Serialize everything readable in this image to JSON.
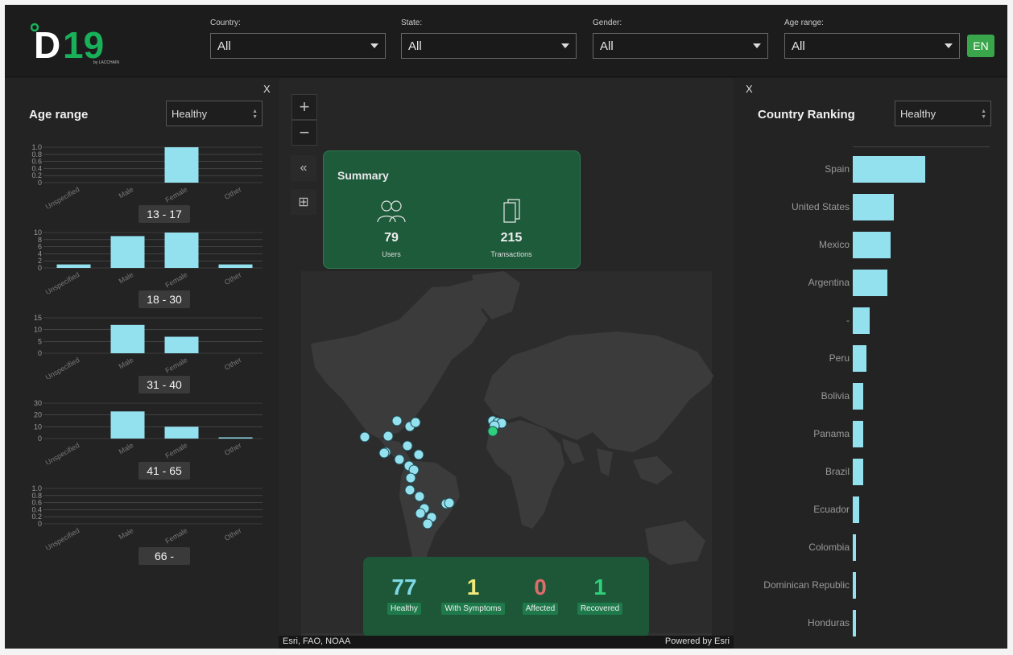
{
  "header": {
    "logo_text": "D19",
    "logo_subtext": "by LACCHAIN",
    "filters": [
      {
        "label": "Country:",
        "value": "All"
      },
      {
        "label": "State:",
        "value": "All"
      },
      {
        "label": "Gender:",
        "value": "All"
      },
      {
        "label": "Age range:",
        "value": "All"
      }
    ],
    "language_button": "EN"
  },
  "left_panel": {
    "close": "X",
    "title": "Age range",
    "selector_value": "Healthy",
    "categories": [
      "Unspecified",
      "Male",
      "Female",
      "Other"
    ],
    "range_labels": [
      "13 - 17",
      "18 - 30",
      "31 - 40",
      "41 - 65",
      "66 -"
    ]
  },
  "chart_data": [
    {
      "type": "bar",
      "title": "13 - 17",
      "categories": [
        "Unspecified",
        "Male",
        "Female",
        "Other"
      ],
      "values": [
        0,
        0,
        1,
        0
      ],
      "ylim": [
        0,
        1.0
      ],
      "yticks": [
        "0",
        "0.2",
        "0.4",
        "0.6",
        "0.8",
        "1.0"
      ],
      "bar_color": "#93e1ef"
    },
    {
      "type": "bar",
      "title": "18 - 30",
      "categories": [
        "Unspecified",
        "Male",
        "Female",
        "Other"
      ],
      "values": [
        1,
        9,
        10,
        1
      ],
      "ylim": [
        0,
        10
      ],
      "yticks": [
        "0",
        "2",
        "4",
        "6",
        "8",
        "10"
      ],
      "bar_color": "#93e1ef"
    },
    {
      "type": "bar",
      "title": "31 - 40",
      "categories": [
        "Unspecified",
        "Male",
        "Female",
        "Other"
      ],
      "values": [
        0,
        12,
        7,
        0
      ],
      "ylim": [
        0,
        15
      ],
      "yticks": [
        "0",
        "5",
        "10",
        "15"
      ],
      "bar_color": "#93e1ef"
    },
    {
      "type": "bar",
      "title": "41 - 65",
      "categories": [
        "Unspecified",
        "Male",
        "Female",
        "Other"
      ],
      "values": [
        0,
        23,
        10,
        1
      ],
      "ylim": [
        0,
        30
      ],
      "yticks": [
        "0",
        "10",
        "20",
        "30"
      ],
      "bar_color": "#93e1ef"
    },
    {
      "type": "bar",
      "title": "66 -",
      "categories": [
        "Unspecified",
        "Male",
        "Female",
        "Other"
      ],
      "values": [
        0,
        0,
        0,
        0
      ],
      "ylim": [
        0,
        1.0
      ],
      "yticks": [
        "0",
        "0.2",
        "0.4",
        "0.6",
        "0.8",
        "1.0"
      ],
      "bar_color": "#93e1ef"
    },
    {
      "type": "bar",
      "title": "Country Ranking",
      "categories": [
        "Spain",
        "United States",
        "Mexico",
        "Argentina",
        "-",
        "Peru",
        "Bolivia",
        "Panama",
        "Brazil",
        "Ecuador",
        "Colombia",
        "Dominican Republic",
        "Honduras"
      ],
      "values": [
        90,
        51,
        47,
        43,
        21,
        17,
        13,
        13,
        13,
        8,
        4,
        4,
        4
      ],
      "orientation": "horizontal",
      "bar_color": "#93e1ef"
    }
  ],
  "map": {
    "zoom_in": "+",
    "zoom_out": "−",
    "collapse_icon": "«",
    "qr_icon": "⊞",
    "summary": {
      "title": "Summary",
      "users_value": "79",
      "users_label": "Users",
      "transactions_value": "215",
      "transactions_label": "Transactions"
    },
    "status": [
      {
        "value": "77",
        "label": "Healthy",
        "color": "#7fd8e6"
      },
      {
        "value": "1",
        "label": "With Symptoms",
        "color": "#f2e97a"
      },
      {
        "value": "0",
        "label": "Affected",
        "color": "#e06b6b"
      },
      {
        "value": "1",
        "label": "Recovered",
        "color": "#2fd07a"
      }
    ],
    "attribution_left": "Esri, FAO, NOAA",
    "attribution_right": "Powered by Esri"
  },
  "right_panel": {
    "close": "X",
    "title": "Country Ranking",
    "selector_value": "Healthy"
  }
}
